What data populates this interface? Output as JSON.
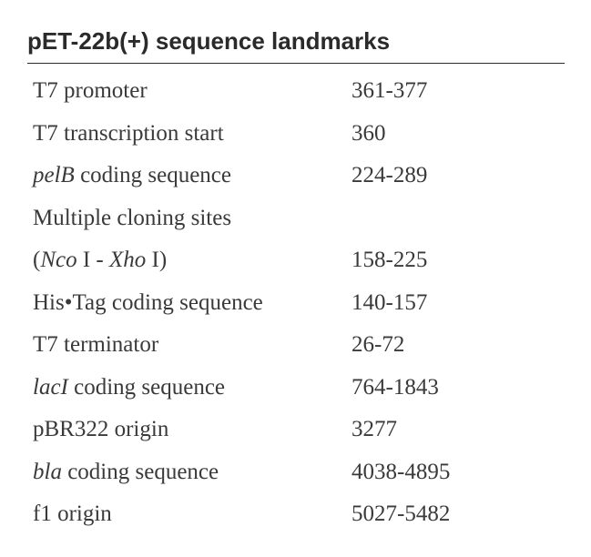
{
  "title": "pET-22b(+) sequence landmarks",
  "colors": {
    "text": "#3a3a3a",
    "title": "#2a2a2a",
    "border": "#2a2a2a",
    "background": "#ffffff"
  },
  "typography": {
    "title_font": "Arial, Helvetica, sans-serif",
    "title_fontsize": 26,
    "title_weight": "bold",
    "body_font": "Georgia, 'Times New Roman', serif",
    "body_fontsize": 25,
    "row_gap": 14,
    "label_col_width": 350
  },
  "entries": [
    {
      "label_segments": [
        {
          "text": "T7 promoter",
          "italic": false
        }
      ],
      "value": "361-377"
    },
    {
      "label_segments": [
        {
          "text": "T7 transcription start",
          "italic": false
        }
      ],
      "value": "360"
    },
    {
      "label_segments": [
        {
          "text": "pelB",
          "italic": true
        },
        {
          "text": " coding sequence",
          "italic": false
        }
      ],
      "value": "224-289"
    },
    {
      "label_segments": [
        {
          "text": "Multiple cloning sites",
          "italic": false
        }
      ],
      "value": ""
    },
    {
      "label_segments": [
        {
          "text": "(",
          "italic": false
        },
        {
          "text": "Nco",
          "italic": true
        },
        {
          "text": " I - ",
          "italic": false
        },
        {
          "text": "Xho",
          "italic": true
        },
        {
          "text": " I)",
          "italic": false
        }
      ],
      "value": "158-225"
    },
    {
      "label_segments": [
        {
          "text": "His•Tag coding sequence",
          "italic": false
        }
      ],
      "value": "140-157"
    },
    {
      "label_segments": [
        {
          "text": "T7 terminator",
          "italic": false
        }
      ],
      "value": "26-72"
    },
    {
      "label_segments": [
        {
          "text": "lacI",
          "italic": true
        },
        {
          "text": " coding sequence",
          "italic": false
        }
      ],
      "value": "764-1843"
    },
    {
      "label_segments": [
        {
          "text": "pBR322 origin",
          "italic": false
        }
      ],
      "value": "3277"
    },
    {
      "label_segments": [
        {
          "text": "bla",
          "italic": true
        },
        {
          "text": " coding sequence",
          "italic": false
        }
      ],
      "value": "4038-4895"
    },
    {
      "label_segments": [
        {
          "text": "f1 origin",
          "italic": false
        }
      ],
      "value": "5027-5482"
    }
  ]
}
